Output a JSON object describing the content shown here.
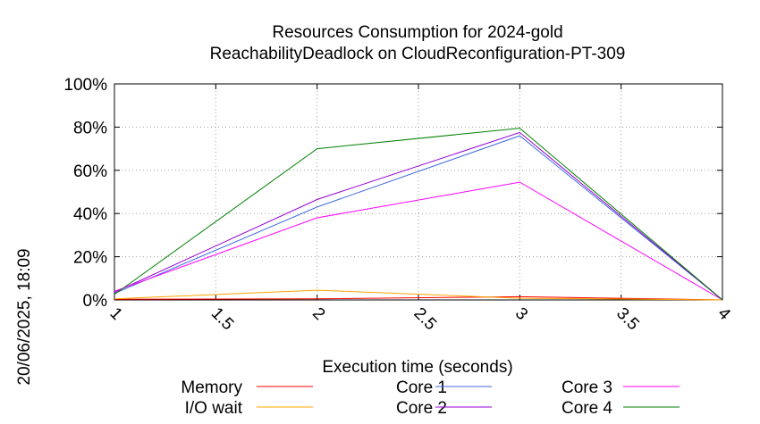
{
  "chart_data": {
    "type": "line",
    "title": [
      "Resources Consumption for 2024-gold",
      "ReachabilityDeadlock on CloudReconfiguration-PT-309"
    ],
    "xlabel": "Execution time (seconds)",
    "ylabel": "",
    "side_label": "20/06/2025, 18:09",
    "xlim": [
      1,
      4
    ],
    "ylim": [
      0,
      100
    ],
    "x_ticks": [
      "1",
      "1.5",
      "2",
      "2.5",
      "3",
      "3.5",
      "4"
    ],
    "x_tick_values": [
      1,
      1.5,
      2,
      2.5,
      3,
      3.5,
      4
    ],
    "y_ticks": [
      "0%",
      "20%",
      "40%",
      "60%",
      "80%",
      "100%"
    ],
    "y_tick_values": [
      0,
      20,
      40,
      60,
      80,
      100
    ],
    "grid": true,
    "legend_placement": "bottom",
    "x": [
      1,
      2,
      3,
      4
    ],
    "series": [
      {
        "name": "Memory",
        "color": "#ff0000",
        "values": [
          0.3,
          0.5,
          1.5,
          0
        ]
      },
      {
        "name": "I/O wait",
        "color": "#ffa500",
        "values": [
          0.5,
          4.5,
          0.8,
          0
        ]
      },
      {
        "name": "Core 1",
        "color": "#4169e1",
        "values": [
          3,
          43,
          76,
          0
        ]
      },
      {
        "name": "Core 2",
        "color": "#9400d3",
        "values": [
          3.5,
          46.5,
          77.5,
          0
        ]
      },
      {
        "name": "Core 3",
        "color": "#ff00ff",
        "values": [
          4,
          38,
          54.5,
          0
        ]
      },
      {
        "name": "Core 4",
        "color": "#008000",
        "values": [
          2.5,
          70,
          79.5,
          0
        ]
      }
    ]
  }
}
